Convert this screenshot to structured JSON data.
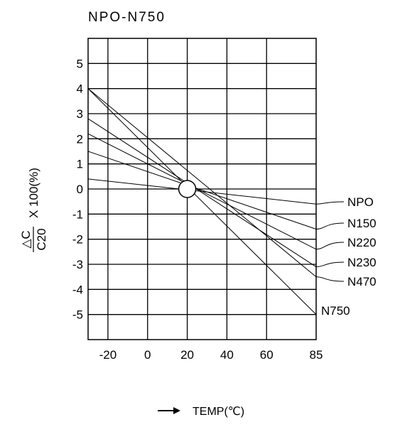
{
  "chart_data": {
    "type": "line",
    "title": "NPO-N750",
    "xlabel": "TEMP(℃)",
    "ylabel": {
      "delta": "△C",
      "denominator": "C20",
      "suffix": "X 100(%)"
    },
    "xlim": [
      -30,
      85
    ],
    "ylim": [
      -6,
      6
    ],
    "x_ticks": [
      {
        "value": -20,
        "label": "-20"
      },
      {
        "value": 0,
        "label": "0"
      },
      {
        "value": 20,
        "label": "20"
      },
      {
        "value": 40,
        "label": "40"
      },
      {
        "value": 60,
        "label": "60"
      },
      {
        "value": 85,
        "label": "85"
      }
    ],
    "y_ticks": [
      {
        "value": 5,
        "label": "5"
      },
      {
        "value": 4,
        "label": "4"
      },
      {
        "value": 3,
        "label": "3"
      },
      {
        "value": 2,
        "label": "2"
      },
      {
        "value": 1,
        "label": "1"
      },
      {
        "value": 0,
        "label": "0"
      },
      {
        "value": -1,
        "label": "-1"
      },
      {
        "value": -2,
        "label": "-2"
      },
      {
        "value": -3,
        "label": "-3"
      },
      {
        "value": -4,
        "label": "-4"
      },
      {
        "value": -5,
        "label": "-5"
      }
    ],
    "grid_x": [
      -20,
      0,
      20,
      40,
      60
    ],
    "grid_y": [
      5,
      4,
      3,
      2,
      1,
      0,
      -1,
      -2,
      -3,
      -4,
      -5
    ],
    "reference_point": {
      "x": 20,
      "y": 0
    },
    "series": [
      {
        "name": "NPO",
        "x": [
          -30,
          85
        ],
        "y": [
          0.4,
          -0.6
        ]
      },
      {
        "name": "N150",
        "x": [
          -30,
          85
        ],
        "y": [
          1.5,
          -1.6
        ]
      },
      {
        "name": "N220",
        "x": [
          -30,
          85
        ],
        "y": [
          2.2,
          -2.4
        ]
      },
      {
        "name": "N230",
        "x": [
          -30,
          85
        ],
        "y": [
          2.8,
          -3.1
        ]
      },
      {
        "name": "N470",
        "x": [
          -30,
          85
        ],
        "y": [
          4.0,
          -3.5
        ]
      },
      {
        "name": "N750",
        "x": [
          -30,
          85
        ],
        "y": [
          4.0,
          -5.0
        ]
      }
    ]
  }
}
